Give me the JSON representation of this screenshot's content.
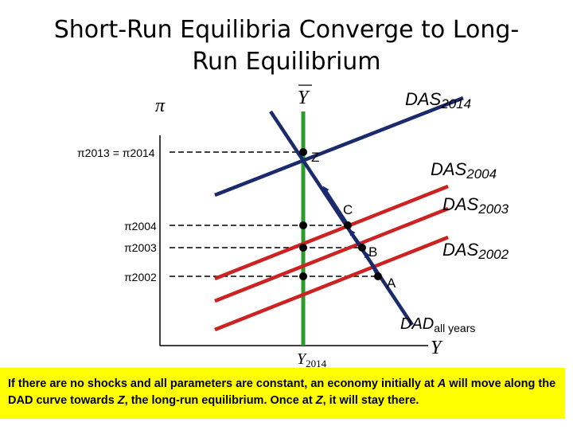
{
  "title": "Short-Run Equilibria Converge to Long-Run Equilibrium",
  "axes": {
    "y_label": "π",
    "x_label": "Y",
    "ybar_label": "Y",
    "y2014_base": "Y",
    "y2014_sub": "2014"
  },
  "inflation_labels": {
    "pi_2013_2014": "π2013 = π2014",
    "pi_2004": "π2004",
    "pi_2003": "π2003",
    "pi_2002": "π2002"
  },
  "curves": {
    "das2014": {
      "base": "DAS",
      "sub": "2014"
    },
    "das2004": {
      "base": "DAS",
      "sub": "2004"
    },
    "das2003": {
      "base": "DAS",
      "sub": "2003"
    },
    "das2002": {
      "base": "DAS",
      "sub": "2002"
    },
    "dad": {
      "base": "DAD",
      "sub": "all years"
    }
  },
  "points": {
    "a": "A",
    "b": "B",
    "c": "C",
    "z": "Z"
  },
  "colors": {
    "das": "#cc2222",
    "dad": "#1a2a6c",
    "long_run": "#2e9a2e",
    "caption_bg": "#ffff00"
  },
  "caption": {
    "part1": "If there are no shocks and all parameters are constant, an economy initially at ",
    "a": "A",
    "part2": " will move along the DAD curve towards ",
    "z1": "Z",
    "part3": ", the long-run equilibrium. Once at ",
    "z2": "Z",
    "part4": ", it will stay there."
  }
}
